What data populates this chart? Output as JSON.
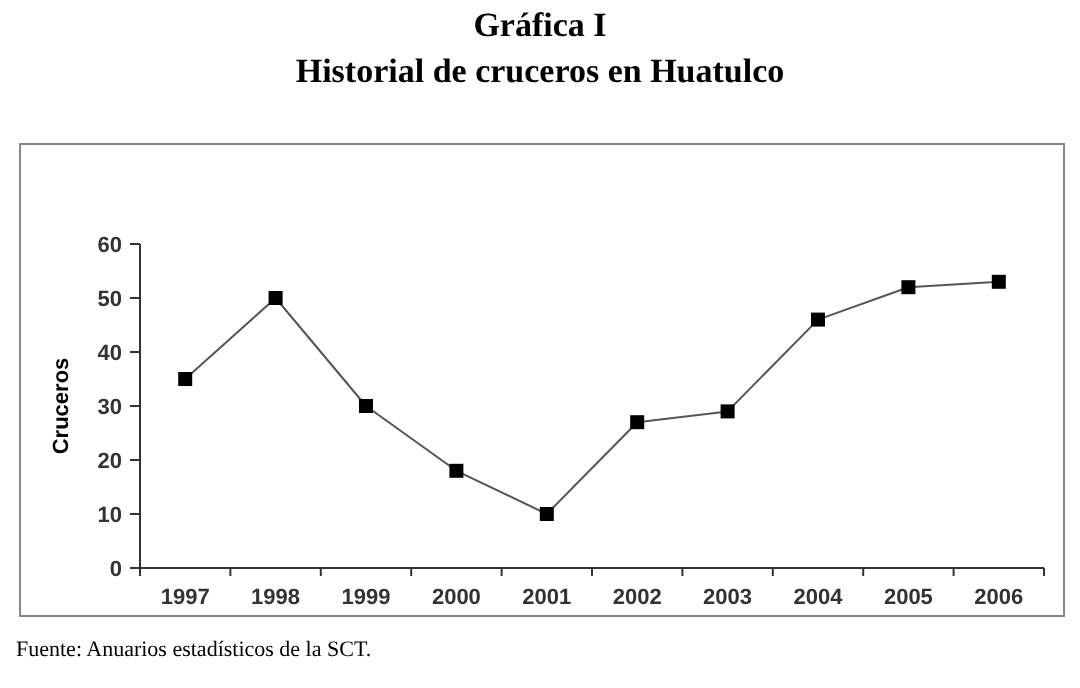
{
  "chart_data": {
    "type": "line",
    "title": "Gráfica I",
    "subtitle": "Historial de cruceros en Huatulco",
    "ylabel": "Cruceros",
    "categories": [
      "1997",
      "1998",
      "1999",
      "2000",
      "2001",
      "2002",
      "2003",
      "2004",
      "2005",
      "2006"
    ],
    "series": [
      {
        "color": "#000000",
        "values": [
          35,
          50,
          30,
          18,
          10,
          27,
          29,
          46,
          52,
          53
        ]
      }
    ],
    "ylim": [
      0,
      60
    ],
    "yticks": [
      0,
      10,
      20,
      30,
      40,
      50,
      60
    ],
    "marker": "square",
    "line_style": "solid",
    "annotations": [
      "Fuente: Anuarios estadísticos de la SCT."
    ]
  }
}
